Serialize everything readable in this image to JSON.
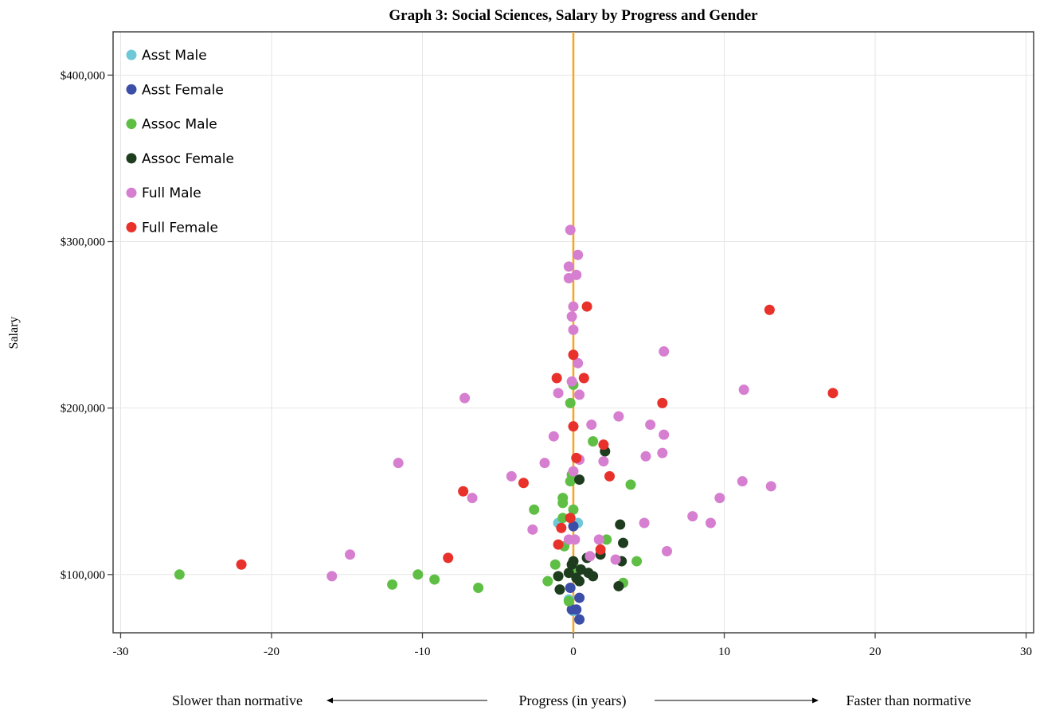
{
  "chart_data": {
    "type": "scatter",
    "title": "Graph 3: Social Sciences, Salary by Progress and Gender",
    "xlabel": "Progress (in years)",
    "xlabel_left": "Slower than normative",
    "xlabel_right": "Faster than normative",
    "ylabel": "Salary",
    "xlim": [
      -30.5,
      30.5
    ],
    "ylim": [
      65000,
      426000
    ],
    "xticks": [
      -30,
      -20,
      -10,
      0,
      10,
      20,
      30
    ],
    "xtick_labels": [
      "-30",
      "-20",
      "-10",
      "0",
      "10",
      "20",
      "30"
    ],
    "yticks": [
      100000,
      200000,
      300000,
      400000
    ],
    "ytick_labels": [
      "$100,000",
      "$200,000",
      "$300,000",
      "$400,000"
    ],
    "grid": true,
    "legend_position": "top-left",
    "reference_line": {
      "x": 0,
      "color": "#f5a623"
    },
    "series": [
      {
        "name": "Asst Male",
        "color": "#6fc8d8",
        "points": [
          [
            -1.0,
            131000
          ],
          [
            0.3,
            131000
          ],
          [
            -0.3,
            85000
          ],
          [
            0.0,
            78000
          ]
        ]
      },
      {
        "name": "Asst Female",
        "color": "#3b4ea8",
        "points": [
          [
            0.0,
            129000
          ],
          [
            0.4,
            86000
          ],
          [
            -0.1,
            79000
          ],
          [
            0.2,
            79000
          ],
          [
            0.4,
            73000
          ],
          [
            -0.2,
            92000
          ]
        ]
      },
      {
        "name": "Assoc Male",
        "color": "#5fbf45",
        "points": [
          [
            -26.1,
            100000
          ],
          [
            -12.0,
            94000
          ],
          [
            -10.3,
            100000
          ],
          [
            -9.2,
            97000
          ],
          [
            -6.3,
            92000
          ],
          [
            -2.6,
            139000
          ],
          [
            -1.7,
            96000
          ],
          [
            -1.2,
            106000
          ],
          [
            -0.7,
            134000
          ],
          [
            -0.7,
            146000
          ],
          [
            -0.7,
            143000
          ],
          [
            -0.6,
            117000
          ],
          [
            -0.3,
            84000
          ],
          [
            -0.2,
            156000
          ],
          [
            -0.2,
            203000
          ],
          [
            0.0,
            214000
          ],
          [
            -0.1,
            160000
          ],
          [
            0.0,
            139000
          ],
          [
            0.1,
            104000
          ],
          [
            1.3,
            180000
          ],
          [
            2.2,
            121000
          ],
          [
            3.3,
            95000
          ],
          [
            3.8,
            154000
          ],
          [
            4.2,
            108000
          ]
        ]
      },
      {
        "name": "Assoc Female",
        "color": "#1e3d1e",
        "points": [
          [
            -1.0,
            99000
          ],
          [
            -0.9,
            91000
          ],
          [
            -0.3,
            101000
          ],
          [
            -0.1,
            106000
          ],
          [
            0.0,
            108000
          ],
          [
            0.2,
            98000
          ],
          [
            0.4,
            96000
          ],
          [
            0.5,
            103000
          ],
          [
            0.9,
            110000
          ],
          [
            1.0,
            101000
          ],
          [
            1.3,
            99000
          ],
          [
            1.8,
            112000
          ],
          [
            2.1,
            174000
          ],
          [
            3.0,
            93000
          ],
          [
            3.1,
            130000
          ],
          [
            3.2,
            108000
          ],
          [
            3.3,
            119000
          ],
          [
            0.4,
            157000
          ]
        ]
      },
      {
        "name": "Full Male",
        "color": "#d67ed0",
        "points": [
          [
            -16.0,
            99000
          ],
          [
            -14.8,
            112000
          ],
          [
            -11.6,
            167000
          ],
          [
            -7.2,
            206000
          ],
          [
            -6.7,
            146000
          ],
          [
            -4.1,
            159000
          ],
          [
            -2.7,
            127000
          ],
          [
            -1.9,
            167000
          ],
          [
            -1.3,
            183000
          ],
          [
            -1.0,
            209000
          ],
          [
            -0.3,
            278000
          ],
          [
            -0.3,
            285000
          ],
          [
            -0.2,
            307000
          ],
          [
            -0.3,
            121000
          ],
          [
            -0.1,
            255000
          ],
          [
            -0.1,
            216000
          ],
          [
            0.0,
            261000
          ],
          [
            0.0,
            247000
          ],
          [
            0.0,
            162000
          ],
          [
            0.1,
            121000
          ],
          [
            0.2,
            280000
          ],
          [
            0.3,
            292000
          ],
          [
            0.3,
            227000
          ],
          [
            0.4,
            208000
          ],
          [
            0.4,
            169000
          ],
          [
            1.1,
            111000
          ],
          [
            1.2,
            190000
          ],
          [
            1.7,
            121000
          ],
          [
            2.0,
            168000
          ],
          [
            2.8,
            109000
          ],
          [
            3.0,
            195000
          ],
          [
            4.7,
            131000
          ],
          [
            4.8,
            171000
          ],
          [
            5.1,
            190000
          ],
          [
            5.9,
            173000
          ],
          [
            6.0,
            184000
          ],
          [
            6.0,
            234000
          ],
          [
            6.2,
            114000
          ],
          [
            7.9,
            135000
          ],
          [
            9.1,
            131000
          ],
          [
            9.7,
            146000
          ],
          [
            11.2,
            156000
          ],
          [
            11.3,
            211000
          ],
          [
            13.1,
            153000
          ]
        ]
      },
      {
        "name": "Full Female",
        "color": "#e8312a",
        "points": [
          [
            -22.0,
            106000
          ],
          [
            -8.3,
            110000
          ],
          [
            -7.3,
            150000
          ],
          [
            -3.3,
            155000
          ],
          [
            -1.1,
            218000
          ],
          [
            -1.0,
            118000
          ],
          [
            -0.8,
            128000
          ],
          [
            -0.2,
            134000
          ],
          [
            0.0,
            232000
          ],
          [
            0.0,
            189000
          ],
          [
            0.2,
            170000
          ],
          [
            0.7,
            218000
          ],
          [
            0.9,
            261000
          ],
          [
            1.8,
            115000
          ],
          [
            2.0,
            178000
          ],
          [
            2.4,
            159000
          ],
          [
            5.9,
            203000
          ],
          [
            13.0,
            259000
          ],
          [
            17.2,
            209000
          ]
        ]
      }
    ]
  }
}
